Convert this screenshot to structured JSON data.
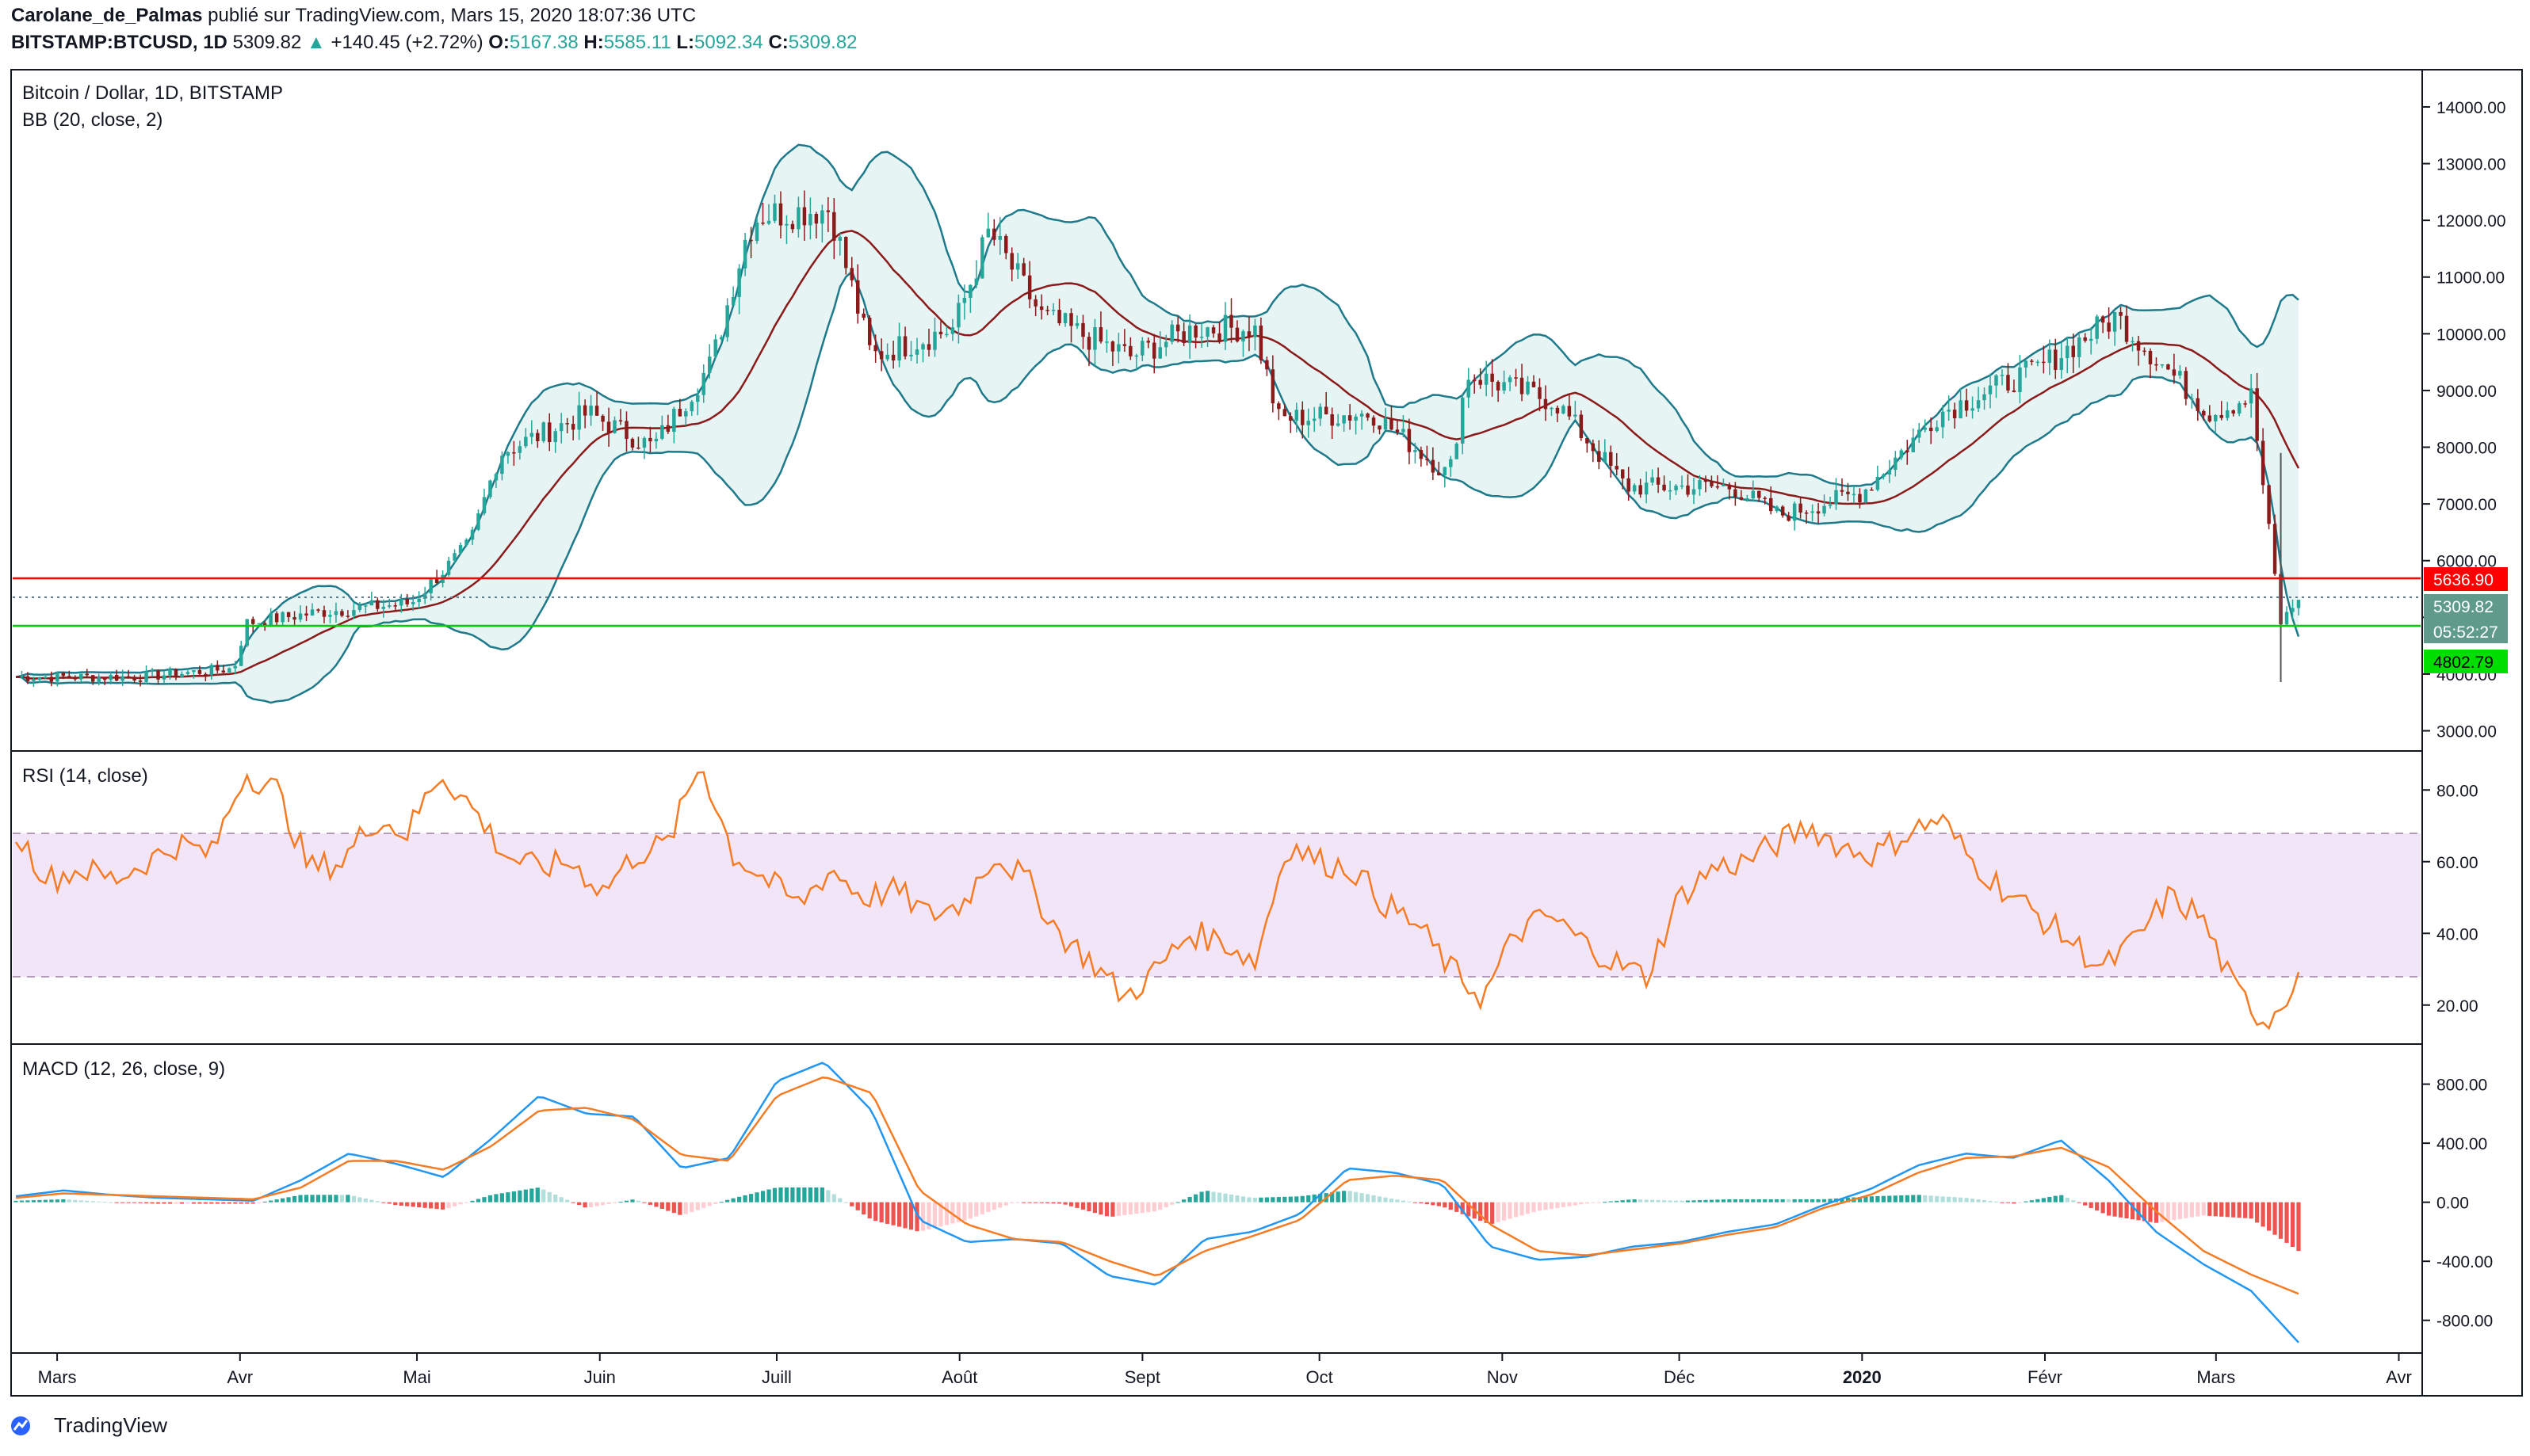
{
  "header": {
    "author": "Carolane_de_Palmas",
    "published_text": "publié sur TradingView.com, Mars 15, 2020 18:07:36 UTC",
    "symbol": "BITSTAMP:BTCUSD, 1D",
    "last": "5309.82",
    "change": "+140.45 (+2.72%)",
    "o_label": "O:",
    "o_val": "5167.38",
    "h_label": "H:",
    "h_val": "5585.11",
    "l_label": "L:",
    "l_val": "5092.34",
    "c_label": "C:",
    "c_val": "5309.82"
  },
  "panels": {
    "price_title": "Bitcoin / Dollar, 1D, BITSTAMP",
    "bb_label": "BB (20, close, 2)",
    "rsi_label": "RSI (14, close)",
    "macd_label": "MACD (12, 26, close, 9)"
  },
  "footer": {
    "brand": "TradingView"
  },
  "colors": {
    "up": "#26a69a",
    "down": "#8b1a1a",
    "bb_band": "#1e7a8a",
    "bb_basis": "#8b1a1a",
    "bb_fill": "#e6f4f4",
    "rsi_line": "#f57c24",
    "rsi_zone": "#f3e5f8",
    "macd_line": "#2196f3",
    "signal_line": "#f57c24",
    "resistance": "#ff0000",
    "support": "#00cc00"
  },
  "chart_data": [
    {
      "type": "line",
      "title": "Bitcoin / Dollar, 1D, BITSTAMP",
      "x_axis": [
        "Mars",
        "Avr",
        "Mai",
        "Juin",
        "Juill",
        "Août",
        "Sept",
        "Oct",
        "Nov",
        "Déc",
        "2020",
        "Févr",
        "Mars",
        "Avr"
      ],
      "y_ticks": [
        "3000.00",
        "4000.00",
        "5000.00",
        "6000.00",
        "7000.00",
        "8000.00",
        "9000.00",
        "10000.00",
        "11000.00",
        "12000.00",
        "13000.00",
        "14000.00"
      ],
      "ylim": [
        2700,
        14600
      ],
      "series": [
        {
          "name": "Bitcoin / Dollar",
          "x": [
            "2019-02-22",
            "2019-03-15",
            "2019-03-31",
            "2019-04-02",
            "2019-04-15",
            "2019-04-30",
            "2019-05-10",
            "2019-05-15",
            "2019-05-30",
            "2019-06-10",
            "2019-06-20",
            "2019-06-26",
            "2019-06-28",
            "2019-07-10",
            "2019-07-17",
            "2019-07-31",
            "2019-08-06",
            "2019-08-15",
            "2019-08-30",
            "2019-09-10",
            "2019-09-20",
            "2019-09-24",
            "2019-10-10",
            "2019-10-23",
            "2019-10-26",
            "2019-11-10",
            "2019-11-22",
            "2019-12-10",
            "2019-12-18",
            "2020-01-01",
            "2020-01-14",
            "2020-01-31",
            "2020-02-13",
            "2020-02-29",
            "2020-03-07",
            "2020-03-12",
            "2020-03-15"
          ],
          "values": [
            3950,
            3950,
            4100,
            4900,
            5100,
            5250,
            6300,
            7900,
            8600,
            8000,
            9500,
            11800,
            12100,
            12200,
            9600,
            10100,
            11800,
            10300,
            9600,
            10100,
            10100,
            8500,
            8600,
            7500,
            9300,
            8800,
            7300,
            7300,
            6800,
            7200,
            8600,
            9400,
            10300,
            8600,
            8900,
            4900,
            5309.82
          ]
        },
        {
          "name": "Resistance",
          "values": [
            5636.9
          ]
        },
        {
          "name": "Support",
          "values": [
            4802.79
          ]
        }
      ],
      "price_labels": [
        "5636.90",
        "5309.82",
        "05:52:27",
        "4802.79"
      ]
    },
    {
      "type": "line",
      "title": "RSI (14, close)",
      "y_ticks": [
        "20.00",
        "40.00",
        "60.00",
        "80.00"
      ],
      "ylim": [
        10,
        90
      ],
      "bands": [
        30,
        70
      ],
      "series": [
        {
          "name": "RSI",
          "values": [
            68,
            55,
            58,
            55,
            60,
            65,
            62,
            85,
            80,
            58,
            60,
            72,
            68,
            85,
            75,
            62,
            58,
            60,
            52,
            62,
            65,
            88,
            62,
            55,
            48,
            58,
            50,
            52,
            45,
            48,
            62,
            55,
            40,
            32,
            22,
            30,
            40,
            38,
            32,
            65,
            60,
            58,
            48,
            42,
            30,
            22,
            40,
            45,
            38,
            32,
            28,
            50,
            58,
            60,
            65,
            70,
            64,
            62,
            68,
            72,
            60,
            52,
            45,
            38,
            30,
            38,
            50,
            45,
            25,
            15,
            28
          ]
        }
      ]
    },
    {
      "type": "bar",
      "title": "MACD (12, 26, close, 9)",
      "y_ticks": [
        "-800.00",
        "-400.00",
        "0.00",
        "400.00",
        "800.00"
      ],
      "ylim": [
        -1000,
        1050
      ],
      "series": [
        {
          "name": "MACD",
          "values": [
            40,
            80,
            50,
            30,
            20,
            10,
            150,
            330,
            260,
            170,
            430,
            720,
            600,
            580,
            230,
            300,
            820,
            950,
            620,
            -120,
            -270,
            -250,
            -280,
            -500,
            -560,
            -250,
            -200,
            -80,
            230,
            200,
            120,
            -300,
            -390,
            -370,
            -300,
            -270,
            -200,
            -150,
            -20,
            90,
            250,
            330,
            300,
            420,
            150,
            -200,
            -420,
            -600,
            -950
          ]
        },
        {
          "name": "Signal",
          "values": [
            30,
            60,
            50,
            40,
            30,
            20,
            100,
            280,
            280,
            220,
            380,
            620,
            640,
            560,
            320,
            280,
            720,
            850,
            740,
            80,
            -150,
            -250,
            -270,
            -400,
            -500,
            -330,
            -230,
            -120,
            150,
            180,
            150,
            -150,
            -330,
            -360,
            -320,
            -280,
            -220,
            -170,
            -40,
            50,
            200,
            300,
            310,
            370,
            240,
            -60,
            -330,
            -490,
            -620
          ]
        }
      ]
    }
  ]
}
